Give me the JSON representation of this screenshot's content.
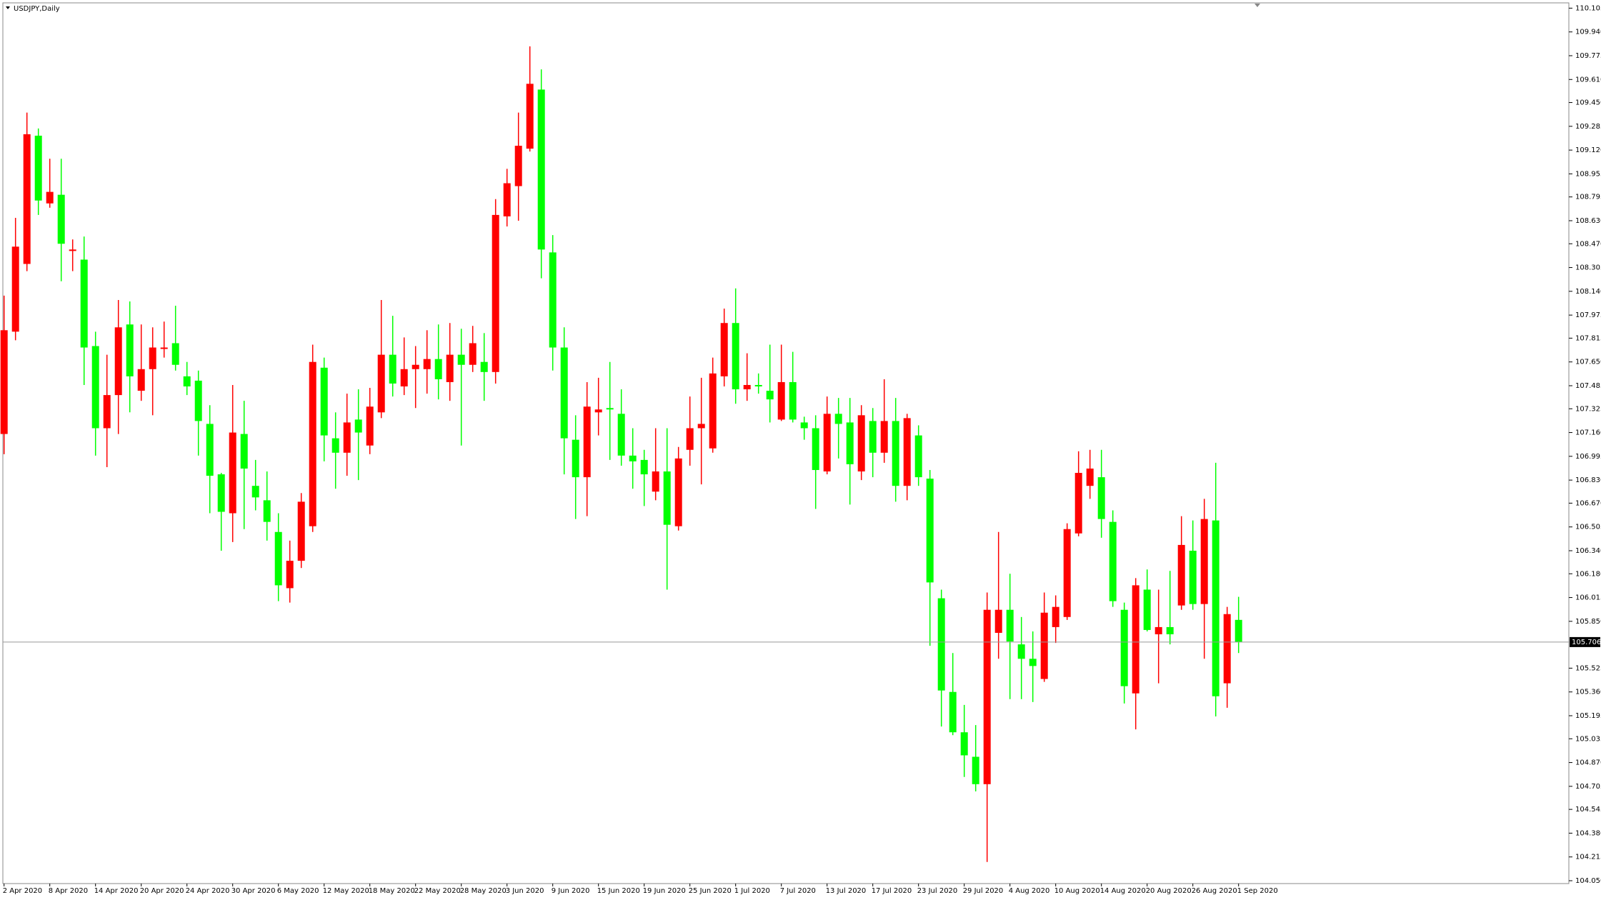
{
  "chart_data": {
    "type": "candlestick",
    "title": "USDJPY,Daily",
    "up_color": "#ff0000",
    "down_color": "#00ff00",
    "categories": [
      "2 Apr 2020",
      null,
      null,
      null,
      "8 Apr 2020",
      null,
      null,
      null,
      "14 Apr 2020",
      null,
      null,
      null,
      "20 Apr 2020",
      null,
      null,
      null,
      "24 Apr 2020",
      null,
      null,
      null,
      "30 Apr 2020",
      null,
      null,
      null,
      "6 May 2020",
      null,
      null,
      null,
      "12 May 2020",
      null,
      null,
      null,
      "18 May 2020",
      null,
      null,
      null,
      "22 May 2020",
      null,
      null,
      null,
      "28 May 2020",
      null,
      null,
      null,
      "3 Jun 2020",
      null,
      null,
      null,
      "9 Jun 2020",
      null,
      null,
      null,
      "15 Jun 2020",
      null,
      null,
      null,
      "19 Jun 2020",
      null,
      null,
      null,
      "25 Jun 2020",
      null,
      null,
      null,
      "1 Jul 2020",
      null,
      null,
      null,
      "7 Jul 2020",
      null,
      null,
      null,
      "13 Jul 2020",
      null,
      null,
      null,
      "17 Jul 2020",
      null,
      null,
      null,
      "23 Jul 2020",
      null,
      null,
      null,
      "29 Jul 2020",
      null,
      null,
      null,
      "4 Aug 2020",
      null,
      null,
      null,
      "10 Aug 2020",
      null,
      null,
      null,
      "14 Aug 2020",
      null,
      null,
      null,
      "20 Aug 2020",
      null,
      null,
      null,
      "26 Aug 2020",
      null,
      null,
      null,
      "1 Sep 2020"
    ],
    "open": [
      107.15,
      107.86,
      108.33,
      109.22,
      108.75,
      108.81,
      108.42,
      108.36,
      107.76,
      107.19,
      107.42,
      107.91,
      107.45,
      107.6,
      107.74,
      107.78,
      107.55,
      107.52,
      107.22,
      106.87,
      106.6,
      107.15,
      106.79,
      106.69,
      106.47,
      106.08,
      106.27,
      106.51,
      107.61,
      107.12,
      107.02,
      107.25,
      107.07,
      107.3,
      107.7,
      107.48,
      107.6,
      107.6,
      107.67,
      107.51,
      107.7,
      107.63,
      107.65,
      107.58,
      108.66,
      108.87,
      109.13,
      109.54,
      108.41,
      107.75,
      107.11,
      106.85,
      107.3,
      107.33,
      107.29,
      107.0,
      106.97,
      106.75,
      106.89,
      106.51,
      107.04,
      107.19,
      107.05,
      107.55,
      107.92,
      107.46,
      107.49,
      107.45,
      107.25,
      107.51,
      107.23,
      107.19,
      106.89,
      107.29,
      107.23,
      106.89,
      107.24,
      107.02,
      107.24,
      106.79,
      107.14,
      106.84,
      106.01,
      105.36,
      105.08,
      104.91,
      104.72,
      105.77,
      105.93,
      105.69,
      105.59,
      105.45,
      105.81,
      105.88,
      106.46,
      106.79,
      106.85,
      106.54,
      105.93,
      105.35,
      106.07,
      105.76,
      105.81,
      105.96,
      106.34,
      105.97,
      106.55,
      105.42,
      105.86
    ],
    "high": [
      108.11,
      108.65,
      109.38,
      109.27,
      109.06,
      109.06,
      108.5,
      108.52,
      107.86,
      107.7,
      108.08,
      108.07,
      107.91,
      107.89,
      107.93,
      108.04,
      107.65,
      107.59,
      107.35,
      106.88,
      107.49,
      107.38,
      106.97,
      106.89,
      106.6,
      106.41,
      106.74,
      107.77,
      107.68,
      107.3,
      107.43,
      107.46,
      107.47,
      108.08,
      107.97,
      107.82,
      107.76,
      107.87,
      107.91,
      107.92,
      107.88,
      107.9,
      107.85,
      108.78,
      108.99,
      109.38,
      109.84,
      109.68,
      108.53,
      107.89,
      107.28,
      107.51,
      107.54,
      107.65,
      107.46,
      107.19,
      107.04,
      107.19,
      107.19,
      107.06,
      107.41,
      107.54,
      107.68,
      108.02,
      108.16,
      107.71,
      107.57,
      107.77,
      107.77,
      107.72,
      107.27,
      107.28,
      107.41,
      107.4,
      107.4,
      107.35,
      107.33,
      107.53,
      107.4,
      107.29,
      107.21,
      106.9,
      106.07,
      105.63,
      105.27,
      105.13,
      106.05,
      106.47,
      106.18,
      105.88,
      105.78,
      106.05,
      106.03,
      106.53,
      107.03,
      107.04,
      107.04,
      106.62,
      105.98,
      106.15,
      106.21,
      106.07,
      106.2,
      106.58,
      106.55,
      106.7,
      106.95,
      105.95,
      106.02
    ],
    "low": [
      107.01,
      107.8,
      108.28,
      108.67,
      108.72,
      108.21,
      108.28,
      107.49,
      107.0,
      106.92,
      107.15,
      107.3,
      107.38,
      107.28,
      107.68,
      107.59,
      107.42,
      107.0,
      106.6,
      106.34,
      106.4,
      106.49,
      106.62,
      106.41,
      105.99,
      105.98,
      106.22,
      106.47,
      106.96,
      106.77,
      106.86,
      106.83,
      107.01,
      107.26,
      107.41,
      107.42,
      107.33,
      107.43,
      107.39,
      107.38,
      107.07,
      107.58,
      107.38,
      107.5,
      108.59,
      108.63,
      109.11,
      108.23,
      107.59,
      106.87,
      106.56,
      106.58,
      107.14,
      106.97,
      106.93,
      106.77,
      106.65,
      106.69,
      106.07,
      106.48,
      106.93,
      106.8,
      107.02,
      107.48,
      107.36,
      107.38,
      107.43,
      107.23,
      107.24,
      107.23,
      107.11,
      106.63,
      106.87,
      106.98,
      106.66,
      106.83,
      106.85,
      106.95,
      106.68,
      106.69,
      106.79,
      105.68,
      105.12,
      105.06,
      104.77,
      104.67,
      104.18,
      105.59,
      105.31,
      105.31,
      105.29,
      105.43,
      105.7,
      105.86,
      106.44,
      106.7,
      106.43,
      105.95,
      105.28,
      105.1,
      105.78,
      105.42,
      105.69,
      105.93,
      105.93,
      105.59,
      105.19,
      105.25,
      105.63
    ],
    "close": [
      107.87,
      108.45,
      109.23,
      108.77,
      108.83,
      108.47,
      108.43,
      107.75,
      107.19,
      107.42,
      107.89,
      107.55,
      107.6,
      107.75,
      107.75,
      107.63,
      107.48,
      107.24,
      106.86,
      106.61,
      107.16,
      106.91,
      106.71,
      106.54,
      106.1,
      106.27,
      106.68,
      107.65,
      107.14,
      107.02,
      107.23,
      107.16,
      107.34,
      107.7,
      107.5,
      107.6,
      107.63,
      107.67,
      107.53,
      107.7,
      107.63,
      107.78,
      107.58,
      108.67,
      108.89,
      109.15,
      109.58,
      108.43,
      107.75,
      107.12,
      106.85,
      107.34,
      107.32,
      107.32,
      107.0,
      106.96,
      106.87,
      106.89,
      106.52,
      106.98,
      107.19,
      107.22,
      107.57,
      107.92,
      107.46,
      107.49,
      107.48,
      107.39,
      107.51,
      107.25,
      107.19,
      106.9,
      107.29,
      107.22,
      106.94,
      107.28,
      107.02,
      107.24,
      106.79,
      107.26,
      106.85,
      106.12,
      105.37,
      105.08,
      104.92,
      104.72,
      105.93,
      105.93,
      105.71,
      105.59,
      105.54,
      105.91,
      105.95,
      106.49,
      106.88,
      106.91,
      106.56,
      105.99,
      105.4,
      106.1,
      105.79,
      105.81,
      105.76,
      106.38,
      105.97,
      106.56,
      105.33,
      105.9,
      105.706
    ],
    "current_price": 105.706,
    "ylim": [
      104.05,
      110.105
    ],
    "yticks": [
      110.105,
      {
        "value": 109.94,
        "label": "109.940"
      },
      109.775,
      {
        "value": 109.61,
        "label": "109.610"
      },
      {
        "value": 109.45,
        "label": "109.450"
      },
      109.285,
      {
        "value": 109.12,
        "label": "109.120"
      },
      108.955,
      108.795,
      {
        "value": 108.63,
        "label": "108.630"
      },
      {
        "value": 108.47,
        "label": "108.470"
      },
      108.305,
      {
        "value": 108.14,
        "label": "108.140"
      },
      107.975,
      107.815,
      {
        "value": 107.65,
        "label": "107.650"
      },
      107.485,
      107.325,
      {
        "value": 107.16,
        "label": "107.160"
      },
      106.995,
      {
        "value": 106.83,
        "label": "106.830"
      },
      {
        "value": 106.67,
        "label": "106.670"
      },
      106.505,
      {
        "value": 106.34,
        "label": "106.340"
      },
      {
        "value": 106.18,
        "label": "106.180"
      },
      106.015,
      {
        "value": 105.85,
        "label": "105.850"
      },
      105.525,
      {
        "value": 105.36,
        "label": "105.360"
      },
      105.195,
      105.035,
      {
        "value": 104.87,
        "label": "104.870"
      },
      104.705,
      104.545,
      {
        "value": 104.38,
        "label": "104.380"
      },
      104.215,
      {
        "value": 104.05,
        "label": "104.050"
      }
    ]
  }
}
